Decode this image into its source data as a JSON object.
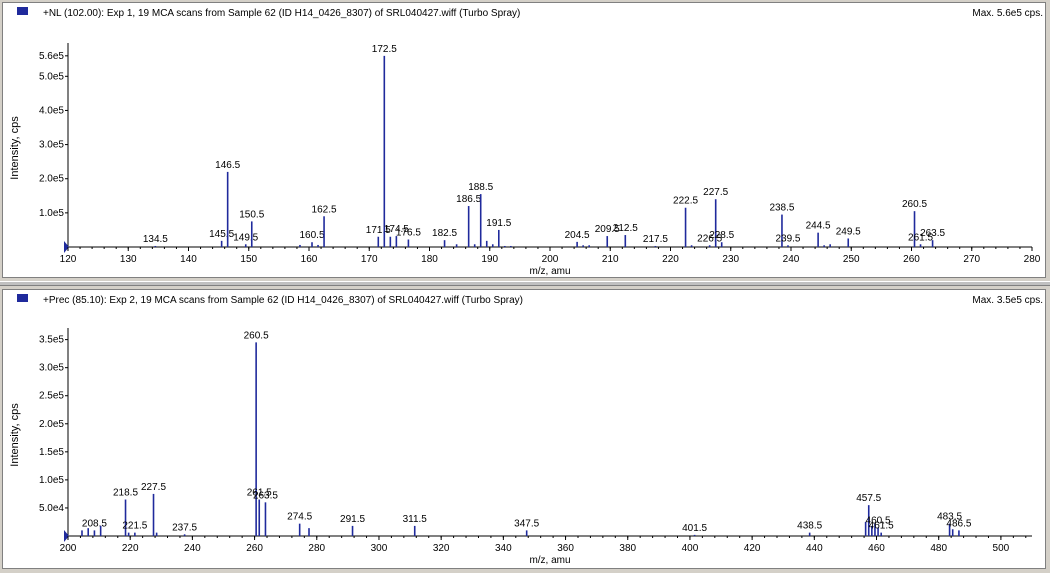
{
  "colors": {
    "series": "#1f2a9c",
    "axis": "#000000",
    "background": "#ffffff",
    "legend_box": "#1f2a9c"
  },
  "chart_data": [
    {
      "type": "bar",
      "title": "+NL (102.00): Exp 1, 19 MCA scans from Sample 62 (ID H14_0426_8307) of SRL040427.wiff (Turbo Spray)",
      "max_label": "Max. 5.6e5 cps.",
      "xlabel": "m/z, amu",
      "ylabel": "Intensity, cps",
      "xlim": [
        120,
        280
      ],
      "ylim": [
        0,
        580000
      ],
      "x_ticks": [
        120,
        130,
        140,
        150,
        160,
        170,
        180,
        190,
        200,
        210,
        220,
        230,
        240,
        250,
        260,
        270,
        280
      ],
      "y_ticks": [
        {
          "value": 100000,
          "label": "1.0e5"
        },
        {
          "value": 200000,
          "label": "2.0e5"
        },
        {
          "value": 300000,
          "label": "3.0e5"
        },
        {
          "value": 400000,
          "label": "4.0e5"
        },
        {
          "value": 500000,
          "label": "5.0e5"
        },
        {
          "value": 560000,
          "label": "5.6e5"
        }
      ],
      "peaks": [
        {
          "x": 134.5,
          "y": 3000,
          "label": "134.5"
        },
        {
          "x": 145.5,
          "y": 18000,
          "label": "145.5"
        },
        {
          "x": 146.5,
          "y": 220000,
          "label": "146.5"
        },
        {
          "x": 149.5,
          "y": 8000,
          "label": "149.5"
        },
        {
          "x": 150.5,
          "y": 75000,
          "label": "150.5"
        },
        {
          "x": 158.5,
          "y": 6000,
          "label": ""
        },
        {
          "x": 160.5,
          "y": 14000,
          "label": "160.5"
        },
        {
          "x": 161.5,
          "y": 6000,
          "label": ""
        },
        {
          "x": 162.5,
          "y": 90000,
          "label": "162.5"
        },
        {
          "x": 171.5,
          "y": 30000,
          "label": "171.5"
        },
        {
          "x": 172.5,
          "y": 560000,
          "label": "172.5"
        },
        {
          "x": 173.5,
          "y": 30000,
          "label": ""
        },
        {
          "x": 174.5,
          "y": 32000,
          "label": "174.5"
        },
        {
          "x": 176.5,
          "y": 22000,
          "label": "176.5"
        },
        {
          "x": 182.5,
          "y": 20000,
          "label": "182.5"
        },
        {
          "x": 184.5,
          "y": 8000,
          "label": ""
        },
        {
          "x": 186.5,
          "y": 120000,
          "label": "186.5"
        },
        {
          "x": 187.5,
          "y": 8000,
          "label": ""
        },
        {
          "x": 188.5,
          "y": 155000,
          "label": "188.5"
        },
        {
          "x": 189.5,
          "y": 18000,
          "label": ""
        },
        {
          "x": 190.5,
          "y": 8000,
          "label": ""
        },
        {
          "x": 191.5,
          "y": 50000,
          "label": "191.5"
        },
        {
          "x": 192.5,
          "y": 3000,
          "label": ""
        },
        {
          "x": 193.5,
          "y": 3000,
          "label": ""
        },
        {
          "x": 204.5,
          "y": 15000,
          "label": "204.5"
        },
        {
          "x": 205.5,
          "y": 5000,
          "label": ""
        },
        {
          "x": 206.5,
          "y": 5000,
          "label": ""
        },
        {
          "x": 209.5,
          "y": 32000,
          "label": "209.5"
        },
        {
          "x": 212.5,
          "y": 35000,
          "label": "212.5"
        },
        {
          "x": 217.5,
          "y": 3000,
          "label": "217.5"
        },
        {
          "x": 222.5,
          "y": 115000,
          "label": "222.5"
        },
        {
          "x": 223.5,
          "y": 5000,
          "label": ""
        },
        {
          "x": 226.5,
          "y": 5000,
          "label": "226.5"
        },
        {
          "x": 227.5,
          "y": 140000,
          "label": "227.5"
        },
        {
          "x": 228.5,
          "y": 14000,
          "label": "228.5"
        },
        {
          "x": 238.5,
          "y": 95000,
          "label": "238.5"
        },
        {
          "x": 239.5,
          "y": 5000,
          "label": "239.5"
        },
        {
          "x": 244.5,
          "y": 42000,
          "label": "244.5"
        },
        {
          "x": 245.5,
          "y": 5000,
          "label": ""
        },
        {
          "x": 246.5,
          "y": 8000,
          "label": ""
        },
        {
          "x": 249.5,
          "y": 25000,
          "label": "249.5"
        },
        {
          "x": 260.5,
          "y": 105000,
          "label": "260.5"
        },
        {
          "x": 261.5,
          "y": 8000,
          "label": "261.5"
        },
        {
          "x": 263.5,
          "y": 20000,
          "label": "263.5"
        }
      ]
    },
    {
      "type": "bar",
      "title": "+Prec (85.10): Exp 2, 19 MCA scans from Sample 62 (ID H14_0426_8307) of SRL040427.wiff (Turbo Spray)",
      "max_label": "Max. 3.5e5 cps.",
      "xlabel": "m/z, amu",
      "ylabel": "Intensity, cps",
      "xlim": [
        200,
        510
      ],
      "ylim": [
        0,
        360000
      ],
      "x_ticks": [
        200,
        220,
        240,
        260,
        280,
        300,
        320,
        340,
        360,
        380,
        400,
        420,
        440,
        460,
        480,
        500
      ],
      "y_ticks": [
        {
          "value": 50000,
          "label": "5.0e4"
        },
        {
          "value": 100000,
          "label": "1.0e5"
        },
        {
          "value": 150000,
          "label": "1.5e5"
        },
        {
          "value": 200000,
          "label": "2.0e5"
        },
        {
          "value": 250000,
          "label": "2.5e5"
        },
        {
          "value": 300000,
          "label": "3.0e5"
        },
        {
          "value": 350000,
          "label": "3.5e5"
        }
      ],
      "peaks": [
        {
          "x": 204.5,
          "y": 10000,
          "label": ""
        },
        {
          "x": 206.5,
          "y": 14000,
          "label": ""
        },
        {
          "x": 208.5,
          "y": 10000,
          "label": "208.5"
        },
        {
          "x": 210.5,
          "y": 18000,
          "label": ""
        },
        {
          "x": 218.5,
          "y": 65000,
          "label": "218.5"
        },
        {
          "x": 219.5,
          "y": 6000,
          "label": ""
        },
        {
          "x": 221.5,
          "y": 6000,
          "label": "221.5"
        },
        {
          "x": 227.5,
          "y": 75000,
          "label": "227.5"
        },
        {
          "x": 228.5,
          "y": 6000,
          "label": ""
        },
        {
          "x": 237.5,
          "y": 3000,
          "label": "237.5"
        },
        {
          "x": 260.5,
          "y": 345000,
          "label": "260.5"
        },
        {
          "x": 261.5,
          "y": 65000,
          "label": "261.5"
        },
        {
          "x": 263.5,
          "y": 60000,
          "label": "263.5"
        },
        {
          "x": 274.5,
          "y": 22000,
          "label": "274.5"
        },
        {
          "x": 277.5,
          "y": 14000,
          "label": ""
        },
        {
          "x": 291.5,
          "y": 18000,
          "label": "291.5"
        },
        {
          "x": 311.5,
          "y": 18000,
          "label": "311.5"
        },
        {
          "x": 347.5,
          "y": 10000,
          "label": "347.5"
        },
        {
          "x": 401.5,
          "y": 2000,
          "label": "401.5"
        },
        {
          "x": 438.5,
          "y": 6000,
          "label": "438.5"
        },
        {
          "x": 456.5,
          "y": 25000,
          "label": ""
        },
        {
          "x": 457.5,
          "y": 55000,
          "label": "457.5"
        },
        {
          "x": 458.5,
          "y": 18000,
          "label": ""
        },
        {
          "x": 459.5,
          "y": 22000,
          "label": ""
        },
        {
          "x": 460.5,
          "y": 15000,
          "label": "460.5"
        },
        {
          "x": 461.5,
          "y": 6000,
          "label": "461.5"
        },
        {
          "x": 483.5,
          "y": 22000,
          "label": "483.5"
        },
        {
          "x": 484.5,
          "y": 12000,
          "label": ""
        },
        {
          "x": 486.5,
          "y": 10000,
          "label": "486.5"
        }
      ]
    }
  ]
}
